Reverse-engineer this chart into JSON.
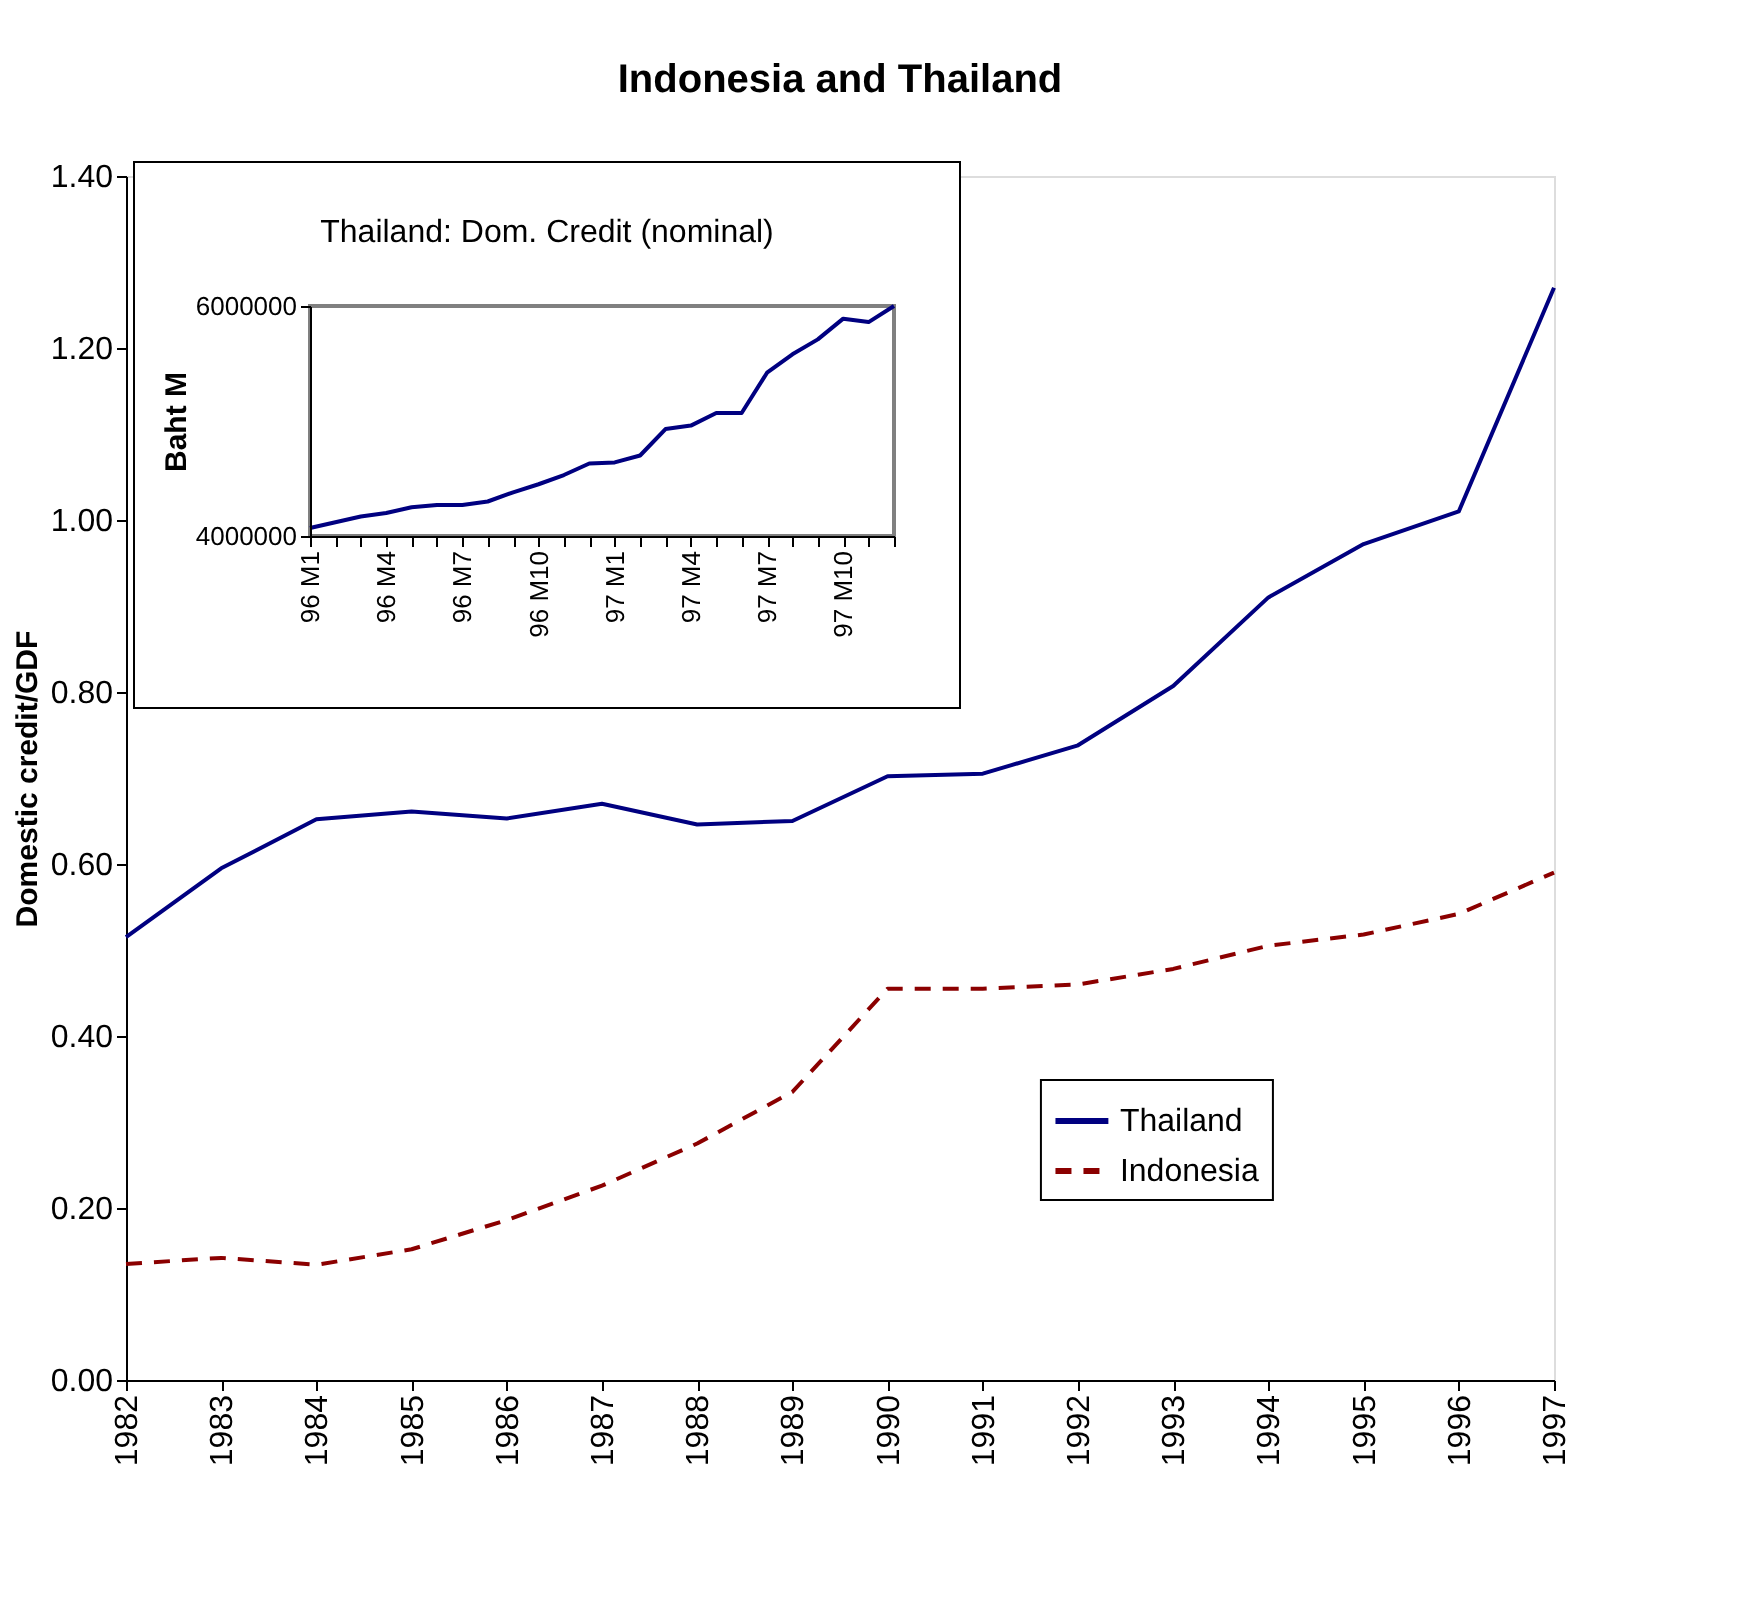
{
  "chart_data": [
    {
      "type": "line",
      "title": "Indonesia and Thailand",
      "ylabel": "Domestic credit/GDF",
      "x": [
        1982,
        1983,
        1984,
        1985,
        1986,
        1987,
        1988,
        1989,
        1990,
        1991,
        1992,
        1993,
        1994,
        1995,
        1996,
        1997
      ],
      "series": [
        {
          "name": "Thailand",
          "color": "#000080",
          "line_style": "solid",
          "values": [
            0.515,
            0.595,
            0.652,
            0.661,
            0.653,
            0.67,
            0.646,
            0.65,
            0.702,
            0.705,
            0.738,
            0.807,
            0.91,
            0.972,
            1.01,
            1.27
          ]
        },
        {
          "name": "Indonesia",
          "color": "#8b0000",
          "line_style": "dashed",
          "values": [
            0.135,
            0.142,
            0.134,
            0.152,
            0.186,
            0.226,
            0.275,
            0.335,
            0.455,
            0.455,
            0.46,
            0.478,
            0.505,
            0.518,
            0.542,
            0.59
          ]
        }
      ],
      "xlim": [
        1982,
        1997
      ],
      "xticks": [
        1982,
        1983,
        1984,
        1985,
        1986,
        1987,
        1988,
        1989,
        1990,
        1991,
        1992,
        1993,
        1994,
        1995,
        1996,
        1997
      ],
      "ylim": [
        0,
        1.4
      ],
      "yticks": [
        {
          "value": 0,
          "label": "0.00"
        },
        {
          "value": 0.2,
          "label": "0.20"
        },
        {
          "value": 0.4,
          "label": "0.40"
        },
        {
          "value": 0.6,
          "label": "0.60"
        },
        {
          "value": 0.8,
          "label": "0.80"
        },
        {
          "value": 1,
          "label": "1.00"
        },
        {
          "value": 1.2,
          "label": "1.20"
        },
        {
          "value": 1.4,
          "label": "1.40"
        }
      ],
      "legend": "bottom right",
      "grid": false
    },
    {
      "type": "line",
      "title": "Thailand: Dom. Credit (nominal)",
      "ylabel": "Baht M",
      "categories": [
        "96 M1",
        null,
        null,
        "96 M4",
        null,
        null,
        "96 M7",
        null,
        null,
        "96 M10",
        null,
        null,
        "97 M1",
        null,
        null,
        "97 M4",
        null,
        null,
        "97 M7",
        null,
        null,
        "97 M10",
        null,
        null
      ],
      "values": [
        4070000,
        4120000,
        4170000,
        4200000,
        4250000,
        4270000,
        4270000,
        4300000,
        4380000,
        4450000,
        4530000,
        4630000,
        4640000,
        4700000,
        4930000,
        4960000,
        5070000,
        5070000,
        5420000,
        5580000,
        5710000,
        5890000,
        5860000,
        6000000
      ],
      "color": "#000080",
      "ylim": [
        4000000,
        6000000
      ],
      "yticks": [
        4000000,
        6000000
      ],
      "grid": false
    }
  ]
}
